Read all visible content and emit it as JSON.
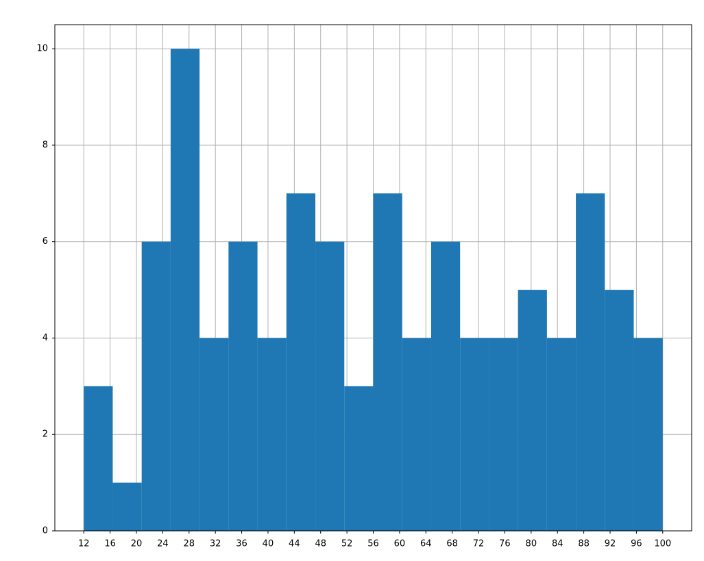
{
  "chart_data": {
    "type": "histogram",
    "bins": [
      12,
      16.4,
      20.8,
      25.2,
      29.6,
      34,
      38.4,
      42.8,
      47.2,
      51.6,
      56,
      60.4,
      64.8,
      69.2,
      73.6,
      78,
      82.4,
      86.8,
      91.2,
      95.6,
      100
    ],
    "values": [
      3,
      1,
      6,
      10,
      4,
      6,
      4,
      7,
      6,
      3,
      7,
      4,
      6,
      4,
      4,
      5,
      4,
      7,
      5,
      4
    ],
    "color": "#1f77b4",
    "xlim": [
      7.6,
      104.4
    ],
    "xticks": [
      12,
      16,
      20,
      24,
      28,
      32,
      36,
      40,
      44,
      48,
      52,
      56,
      60,
      64,
      68,
      72,
      76,
      80,
      84,
      88,
      92,
      96,
      100
    ],
    "ylim": [
      0,
      10.5
    ],
    "yticks": [
      0,
      2,
      4,
      6,
      8,
      10
    ],
    "grid": true
  }
}
